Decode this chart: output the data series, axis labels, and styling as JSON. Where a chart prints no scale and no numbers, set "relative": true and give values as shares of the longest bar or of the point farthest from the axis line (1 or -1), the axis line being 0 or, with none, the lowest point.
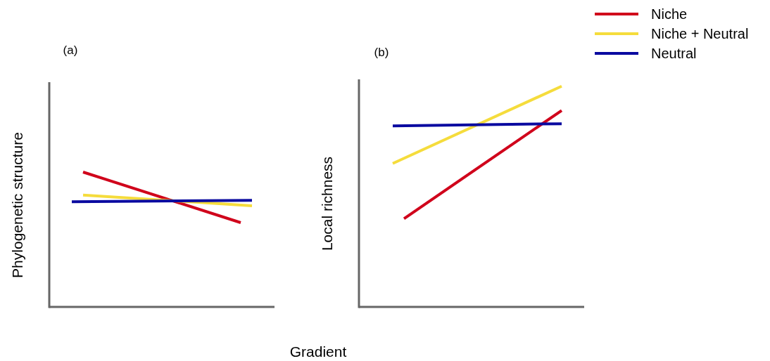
{
  "chart_data": [
    {
      "type": "line",
      "title": "(a)",
      "ylabel": "Phylogenetic structure",
      "xlabel": "Gradient",
      "relative": true,
      "legend": false,
      "categories": [
        null,
        null,
        null,
        null,
        null,
        null,
        null,
        null,
        null,
        null,
        null,
        null,
        null,
        null,
        null,
        null,
        null,
        null,
        null,
        null,
        null
      ],
      "series": [
        {
          "color": "#d0021b",
          "values": [
            null,
            null,
            null,
            1,
            null,
            null,
            null,
            null,
            null,
            null,
            null,
            null,
            null,
            null,
            null,
            null,
            null,
            0.625,
            null,
            null,
            null
          ]
        },
        {
          "color": "#f5dc3c",
          "values": [
            null,
            null,
            null,
            0.83,
            null,
            null,
            null,
            null,
            null,
            null,
            null,
            null,
            null,
            null,
            null,
            null,
            null,
            null,
            0.75,
            null,
            null
          ]
        },
        {
          "color": "#0a0aa0",
          "values": [
            null,
            null,
            0.78,
            null,
            null,
            null,
            null,
            null,
            null,
            null,
            null,
            null,
            null,
            null,
            null,
            null,
            null,
            null,
            0.79,
            null,
            null
          ]
        }
      ]
    },
    {
      "type": "line",
      "title": "(b)",
      "ylabel": "Local richness",
      "relative": true,
      "legend": "top right",
      "categories": [
        null,
        null,
        null,
        null,
        null,
        null,
        null,
        null,
        null,
        null,
        null,
        null,
        null,
        null,
        null,
        null,
        null,
        null,
        null,
        null,
        null
      ],
      "series": [
        {
          "name": "Niche",
          "color": "#d0021b",
          "values": [
            null,
            null,
            null,
            null,
            0.4,
            null,
            null,
            null,
            null,
            null,
            null,
            null,
            null,
            null,
            null,
            null,
            null,
            null,
            0.89,
            null,
            null
          ]
        },
        {
          "name": "Niche + Neutral",
          "color": "#f5dc3c",
          "values": [
            null,
            null,
            null,
            0.65,
            null,
            null,
            null,
            null,
            null,
            null,
            null,
            null,
            null,
            null,
            null,
            null,
            null,
            null,
            1,
            null,
            null
          ]
        },
        {
          "name": "Neutral",
          "color": "#0a0aa0",
          "values": [
            null,
            null,
            null,
            0.82,
            null,
            null,
            null,
            null,
            null,
            null,
            null,
            null,
            null,
            null,
            null,
            null,
            null,
            null,
            0.83,
            null,
            null
          ]
        }
      ]
    }
  ]
}
